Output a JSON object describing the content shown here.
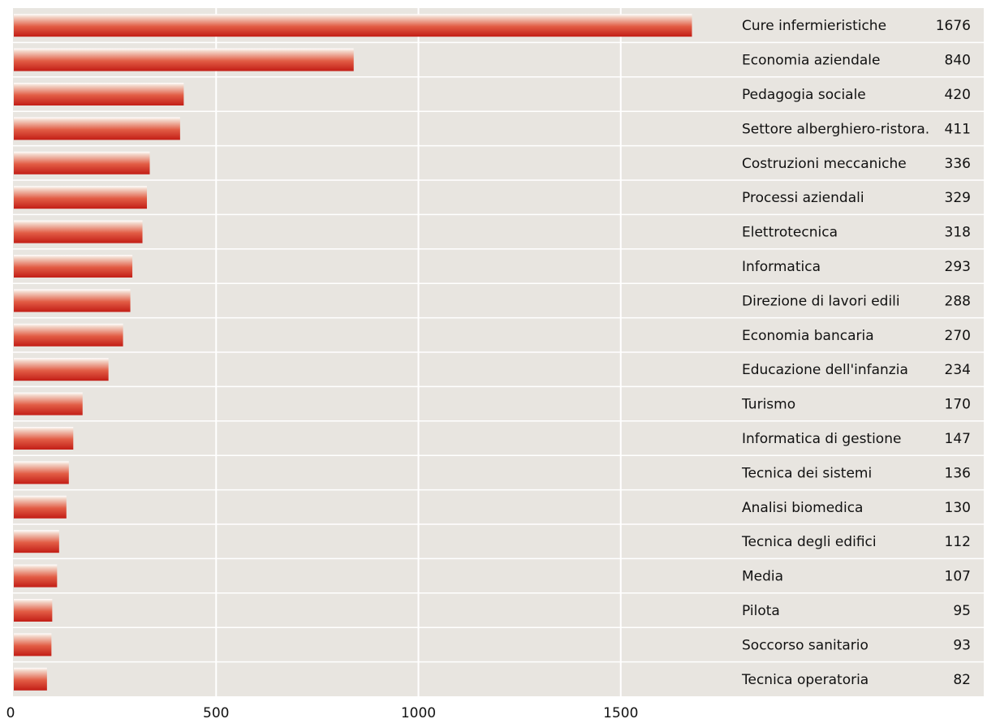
{
  "chart_data": {
    "type": "bar",
    "orientation": "horizontal",
    "categories": [
      "Cure infermieristiche",
      "Economia aziendale",
      "Pedagogia sociale",
      "Settore alberghiero-ristora.",
      "Costruzioni meccaniche",
      "Processi aziendali",
      "Elettrotecnica",
      "Informatica",
      "Direzione di lavori edili",
      "Economia bancaria",
      "Educazione dell'infanzia",
      "Turismo",
      "Informatica di gestione",
      "Tecnica dei sistemi",
      "Analisi biomedica",
      "Tecnica degli edifici",
      "Media",
      "Pilota",
      "Soccorso sanitario",
      "Tecnica operatoria"
    ],
    "values": [
      1676,
      840,
      420,
      411,
      336,
      329,
      318,
      293,
      288,
      270,
      234,
      170,
      147,
      136,
      130,
      112,
      107,
      95,
      93,
      82
    ],
    "value_labels": [
      "1676",
      "840",
      "420",
      "411",
      "336",
      "329",
      "318",
      "293",
      "288",
      "270",
      "234",
      "170",
      "147",
      "136",
      "130",
      "112",
      "107",
      "95",
      "93",
      "82"
    ],
    "xlim": [
      0,
      1675
    ],
    "xticks": [
      0,
      500,
      1000,
      1500
    ],
    "xtick_labels": [
      "0",
      "500",
      "1000",
      "1500"
    ],
    "grid": true,
    "colors": {
      "background": "#e8e5e0",
      "grid": "#ffffff",
      "bar_top": "#f2d6c9",
      "bar_mid": "#e0523b",
      "bar_bottom": "#c0221a"
    }
  }
}
